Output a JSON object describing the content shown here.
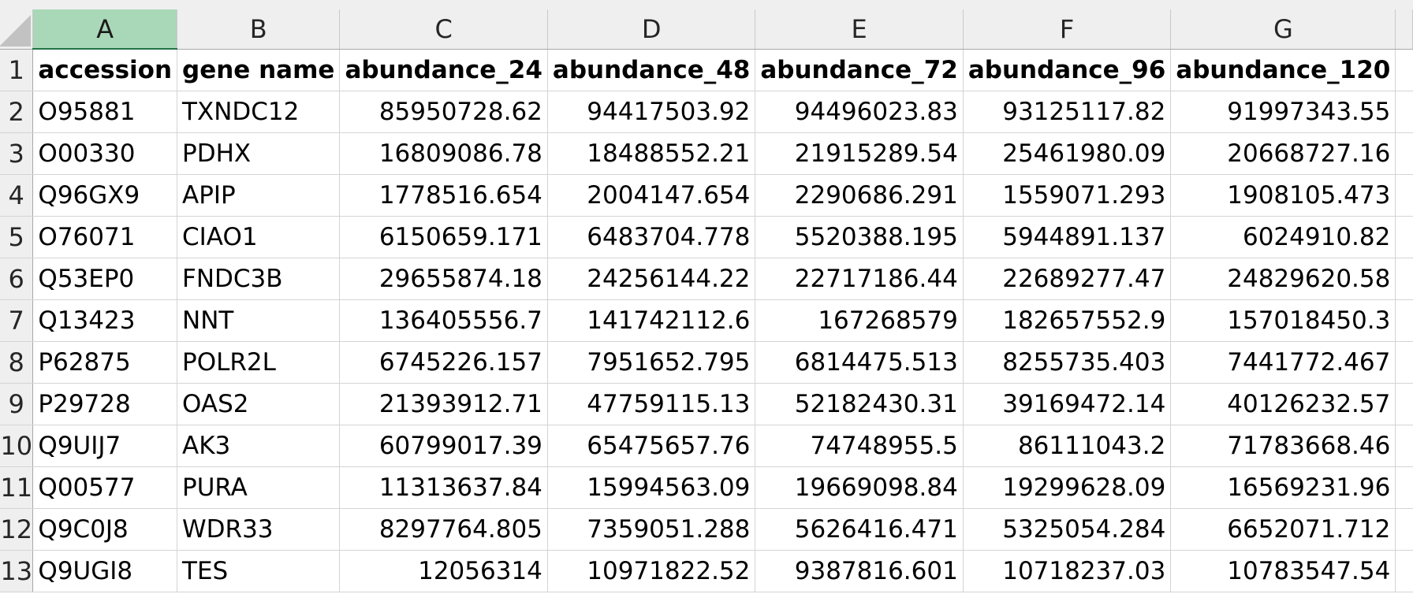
{
  "columns": [
    "A",
    "B",
    "C",
    "D",
    "E",
    "F",
    "G"
  ],
  "selected_column": "A",
  "header_row": {
    "row_number": "1",
    "cells": [
      "accession",
      "gene name",
      "abundance_24",
      "abundance_48",
      "abundance_72",
      "abundance_96",
      "abundance_120"
    ]
  },
  "rows": [
    {
      "n": "2",
      "cells": [
        "O95881",
        "TXNDC12",
        "85950728.62",
        "94417503.92",
        "94496023.83",
        "93125117.82",
        "91997343.55"
      ]
    },
    {
      "n": "3",
      "cells": [
        "O00330",
        "PDHX",
        "16809086.78",
        "18488552.21",
        "21915289.54",
        "25461980.09",
        "20668727.16"
      ]
    },
    {
      "n": "4",
      "cells": [
        "Q96GX9",
        "APIP",
        "1778516.654",
        "2004147.654",
        "2290686.291",
        "1559071.293",
        "1908105.473"
      ]
    },
    {
      "n": "5",
      "cells": [
        "O76071",
        "CIAO1",
        "6150659.171",
        "6483704.778",
        "5520388.195",
        "5944891.137",
        "6024910.82"
      ]
    },
    {
      "n": "6",
      "cells": [
        "Q53EP0",
        "FNDC3B",
        "29655874.18",
        "24256144.22",
        "22717186.44",
        "22689277.47",
        "24829620.58"
      ]
    },
    {
      "n": "7",
      "cells": [
        "Q13423",
        "NNT",
        "136405556.7",
        "141742112.6",
        "167268579",
        "182657552.9",
        "157018450.3"
      ]
    },
    {
      "n": "8",
      "cells": [
        "P62875",
        "POLR2L",
        "6745226.157",
        "7951652.795",
        "6814475.513",
        "8255735.403",
        "7441772.467"
      ]
    },
    {
      "n": "9",
      "cells": [
        "P29728",
        "OAS2",
        "21393912.71",
        "47759115.13",
        "52182430.31",
        "39169472.14",
        "40126232.57"
      ]
    },
    {
      "n": "10",
      "cells": [
        "Q9UIJ7",
        "AK3",
        "60799017.39",
        "65475657.76",
        "74748955.5",
        "86111043.2",
        "71783668.46"
      ]
    },
    {
      "n": "11",
      "cells": [
        "Q00577",
        "PURA",
        "11313637.84",
        "15994563.09",
        "19669098.84",
        "19299628.09",
        "16569231.96"
      ]
    },
    {
      "n": "12",
      "cells": [
        "Q9C0J8",
        "WDR33",
        "8297764.805",
        "7359051.288",
        "5626416.471",
        "5325054.284",
        "6652071.712"
      ]
    },
    {
      "n": "13",
      "cells": [
        "Q9UGI8",
        "TES",
        "12056314",
        "10971822.52",
        "9387816.601",
        "10718237.03",
        "10783547.54"
      ]
    }
  ],
  "colors": {
    "header_bg": "#efefef",
    "selected_header_bg": "#a9d8b8",
    "selected_header_accent": "#217346",
    "gridline": "#d4d4d4"
  }
}
